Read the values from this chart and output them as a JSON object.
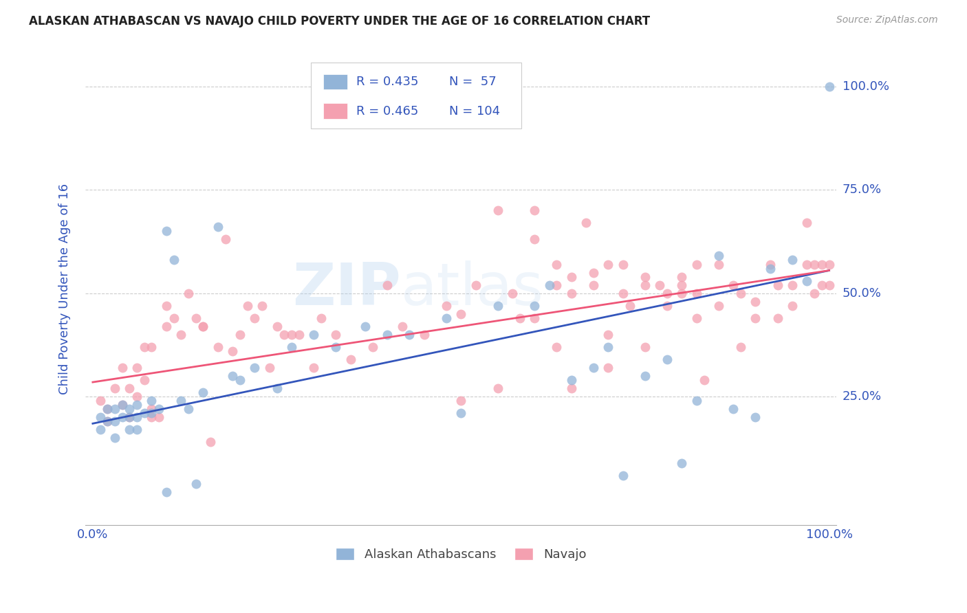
{
  "title": "ALASKAN ATHABASCAN VS NAVAJO CHILD POVERTY UNDER THE AGE OF 16 CORRELATION CHART",
  "source": "Source: ZipAtlas.com",
  "ylabel": "Child Poverty Under the Age of 16",
  "ytick_labels": [
    "25.0%",
    "50.0%",
    "75.0%",
    "100.0%"
  ],
  "ytick_values": [
    0.25,
    0.5,
    0.75,
    1.0
  ],
  "xlim": [
    -0.01,
    1.01
  ],
  "ylim": [
    -0.06,
    1.08
  ],
  "legend_r1": "R = 0.435",
  "legend_n1": "N =  57",
  "legend_r2": "R = 0.465",
  "legend_n2": "N = 104",
  "color_blue": "#92B4D8",
  "color_pink": "#F4A0B0",
  "color_blue_line": "#3355BB",
  "color_pink_line": "#EE5577",
  "color_title": "#222222",
  "color_axis_label": "#3355BB",
  "color_tick_label": "#3355BB",
  "watermark_zip": "ZIP",
  "watermark_atlas": "atlas",
  "blue_scatter_x": [
    0.01,
    0.01,
    0.02,
    0.02,
    0.03,
    0.03,
    0.03,
    0.04,
    0.04,
    0.05,
    0.05,
    0.05,
    0.06,
    0.06,
    0.06,
    0.07,
    0.08,
    0.08,
    0.09,
    0.1,
    0.1,
    0.11,
    0.12,
    0.13,
    0.14,
    0.15,
    0.17,
    0.19,
    0.2,
    0.22,
    0.25,
    0.27,
    0.3,
    0.33,
    0.37,
    0.4,
    0.43,
    0.48,
    0.5,
    0.55,
    0.6,
    0.62,
    0.65,
    0.68,
    0.7,
    0.72,
    0.75,
    0.78,
    0.8,
    0.82,
    0.85,
    0.87,
    0.9,
    0.92,
    0.95,
    0.97,
    1.0
  ],
  "blue_scatter_y": [
    0.2,
    0.17,
    0.22,
    0.19,
    0.22,
    0.19,
    0.15,
    0.23,
    0.2,
    0.22,
    0.2,
    0.17,
    0.23,
    0.2,
    0.17,
    0.21,
    0.24,
    0.21,
    0.22,
    0.65,
    0.02,
    0.58,
    0.24,
    0.22,
    0.04,
    0.26,
    0.66,
    0.3,
    0.29,
    0.32,
    0.27,
    0.37,
    0.4,
    0.37,
    0.42,
    0.4,
    0.4,
    0.44,
    0.21,
    0.47,
    0.47,
    0.52,
    0.29,
    0.32,
    0.37,
    0.06,
    0.3,
    0.34,
    0.09,
    0.24,
    0.59,
    0.22,
    0.2,
    0.56,
    0.58,
    0.53,
    1.0
  ],
  "pink_scatter_x": [
    0.01,
    0.02,
    0.02,
    0.03,
    0.04,
    0.04,
    0.05,
    0.05,
    0.06,
    0.06,
    0.07,
    0.07,
    0.08,
    0.08,
    0.08,
    0.09,
    0.1,
    0.1,
    0.11,
    0.12,
    0.13,
    0.14,
    0.15,
    0.15,
    0.16,
    0.17,
    0.18,
    0.19,
    0.2,
    0.21,
    0.22,
    0.23,
    0.24,
    0.25,
    0.26,
    0.27,
    0.28,
    0.3,
    0.31,
    0.33,
    0.35,
    0.38,
    0.4,
    0.42,
    0.45,
    0.48,
    0.5,
    0.52,
    0.55,
    0.58,
    0.6,
    0.6,
    0.63,
    0.63,
    0.65,
    0.65,
    0.67,
    0.68,
    0.7,
    0.7,
    0.72,
    0.73,
    0.75,
    0.75,
    0.77,
    0.78,
    0.8,
    0.8,
    0.82,
    0.82,
    0.83,
    0.85,
    0.85,
    0.87,
    0.88,
    0.88,
    0.9,
    0.9,
    0.92,
    0.93,
    0.93,
    0.95,
    0.95,
    0.97,
    0.97,
    0.98,
    0.98,
    0.99,
    0.99,
    1.0,
    1.0,
    0.5,
    0.55,
    0.57,
    0.6,
    0.63,
    0.65,
    0.68,
    0.7,
    0.72,
    0.75,
    0.78,
    0.8,
    0.82
  ],
  "pink_scatter_y": [
    0.24,
    0.22,
    0.19,
    0.27,
    0.32,
    0.23,
    0.27,
    0.2,
    0.25,
    0.32,
    0.29,
    0.37,
    0.37,
    0.22,
    0.2,
    0.2,
    0.42,
    0.47,
    0.44,
    0.4,
    0.5,
    0.44,
    0.42,
    0.42,
    0.14,
    0.37,
    0.63,
    0.36,
    0.4,
    0.47,
    0.44,
    0.47,
    0.32,
    0.42,
    0.4,
    0.4,
    0.4,
    0.32,
    0.44,
    0.4,
    0.34,
    0.37,
    0.52,
    0.42,
    0.4,
    0.47,
    0.24,
    0.52,
    0.27,
    0.44,
    0.63,
    0.44,
    0.57,
    0.37,
    0.5,
    0.27,
    0.67,
    0.52,
    0.32,
    0.4,
    0.5,
    0.47,
    0.37,
    0.52,
    0.52,
    0.47,
    0.5,
    0.54,
    0.5,
    0.44,
    0.29,
    0.57,
    0.47,
    0.52,
    0.5,
    0.37,
    0.48,
    0.44,
    0.57,
    0.52,
    0.44,
    0.52,
    0.47,
    0.67,
    0.57,
    0.5,
    0.57,
    0.57,
    0.52,
    0.57,
    0.52,
    0.45,
    0.7,
    0.5,
    0.7,
    0.52,
    0.54,
    0.55,
    0.57,
    0.57,
    0.54,
    0.5,
    0.52,
    0.57
  ],
  "blue_line_x": [
    0.0,
    1.0
  ],
  "blue_line_y": [
    0.185,
    0.555
  ],
  "pink_line_x": [
    0.0,
    1.0
  ],
  "pink_line_y": [
    0.285,
    0.555
  ],
  "background_color": "#ffffff",
  "grid_color": "#cccccc",
  "legend_border_color": "#cccccc"
}
